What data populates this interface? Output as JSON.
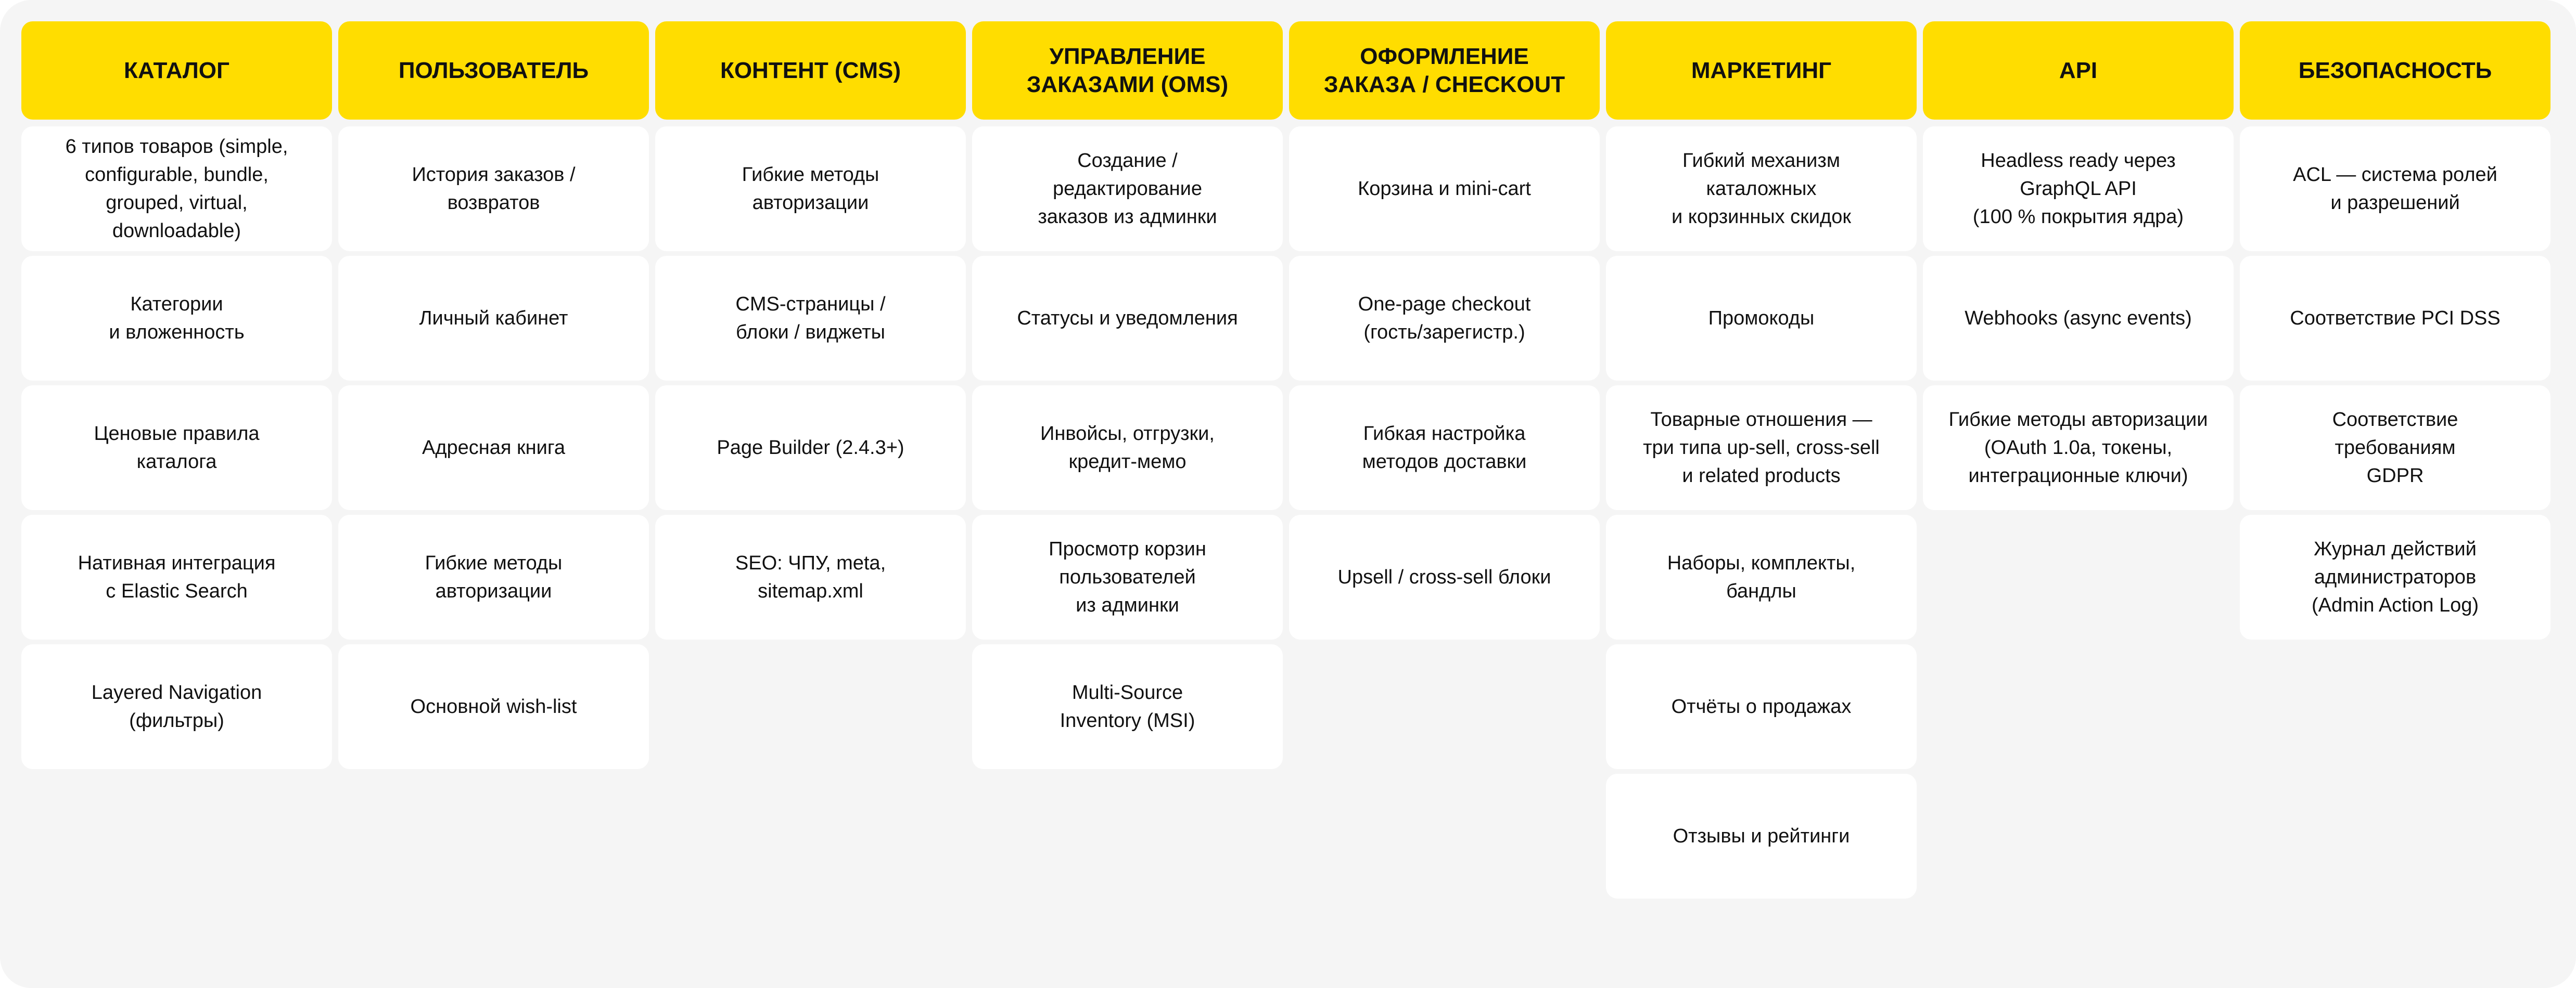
{
  "colors": {
    "header_bg": "#ffdd00",
    "card_bg": "#ffffff",
    "board_bg": "#f5f5f5",
    "text": "#111111"
  },
  "columns": [
    {
      "title": "КАТАЛОГ",
      "items": [
        "6 типов товаров (simple,\nconfigurable, bundle,\ngrouped, virtual,\ndownloadable)",
        "Категории\nи вложенность",
        "Ценовые правила\nкаталога",
        "Нативная интеграция\nс Elastic Search",
        "Layered Navigation\n(фильтры)"
      ]
    },
    {
      "title": "ПОЛЬЗОВАТЕЛЬ",
      "items": [
        "История заказов /\nвозвратов",
        "Личный кабинет",
        "Адресная книга",
        "Гибкие методы\nавторизации",
        "Основной wish-list"
      ]
    },
    {
      "title": "КОНТЕНТ (CMS)",
      "items": [
        "Гибкие методы\nавторизации",
        "CMS-страницы /\nблоки / виджеты",
        "Page Builder (2.4.3+)",
        "SEO: ЧПУ, meta,\nsitemap.xml"
      ]
    },
    {
      "title": "УПРАВЛЕНИЕ\nЗАКАЗАМИ (OMS)",
      "items": [
        "Создание /\nредактирование\nзаказов из админки",
        "Статусы и уведомления",
        "Инвойсы, отгрузки,\nкредит-мемо",
        "Просмотр корзин\nпользователей\nиз админки",
        "Multi-Source\nInventory (MSI)"
      ]
    },
    {
      "title": "ОФОРМЛЕНИЕ\nЗАКАЗА / CHECKOUT",
      "items": [
        "Корзина и mini-cart",
        "One-page checkout\n(гость/зарегистр.)",
        "Гибкая настройка\nметодов доставки",
        "Upsell / cross-sell блоки"
      ]
    },
    {
      "title": "МАРКЕТИНГ",
      "items": [
        "Гибкий механизм\nкаталожных\nи корзинных скидок",
        "Промокоды",
        "Товарные отношения —\nтри типа up-sell, cross-sell\nи related products",
        "Наборы, комплекты,\nбандлы",
        "Отчёты о продажах",
        "Отзывы и рейтинги"
      ]
    },
    {
      "title": "API",
      "items": [
        "Headless ready через\nGraphQL API\n(100 % покрытия ядра)",
        "Webhooks (async events)",
        "Гибкие методы авторизации\n(OAuth 1.0a, токены,\nинтеграционные ключи)"
      ]
    },
    {
      "title": "БЕЗОПАСНОСТЬ",
      "items": [
        "ACL — система ролей\nи разрешений",
        "Соответствие PCI DSS",
        "Соответствие\nтребованиям\nGDPR",
        "Журнал действий\nадминистраторов\n(Admin Action Log)"
      ]
    }
  ]
}
